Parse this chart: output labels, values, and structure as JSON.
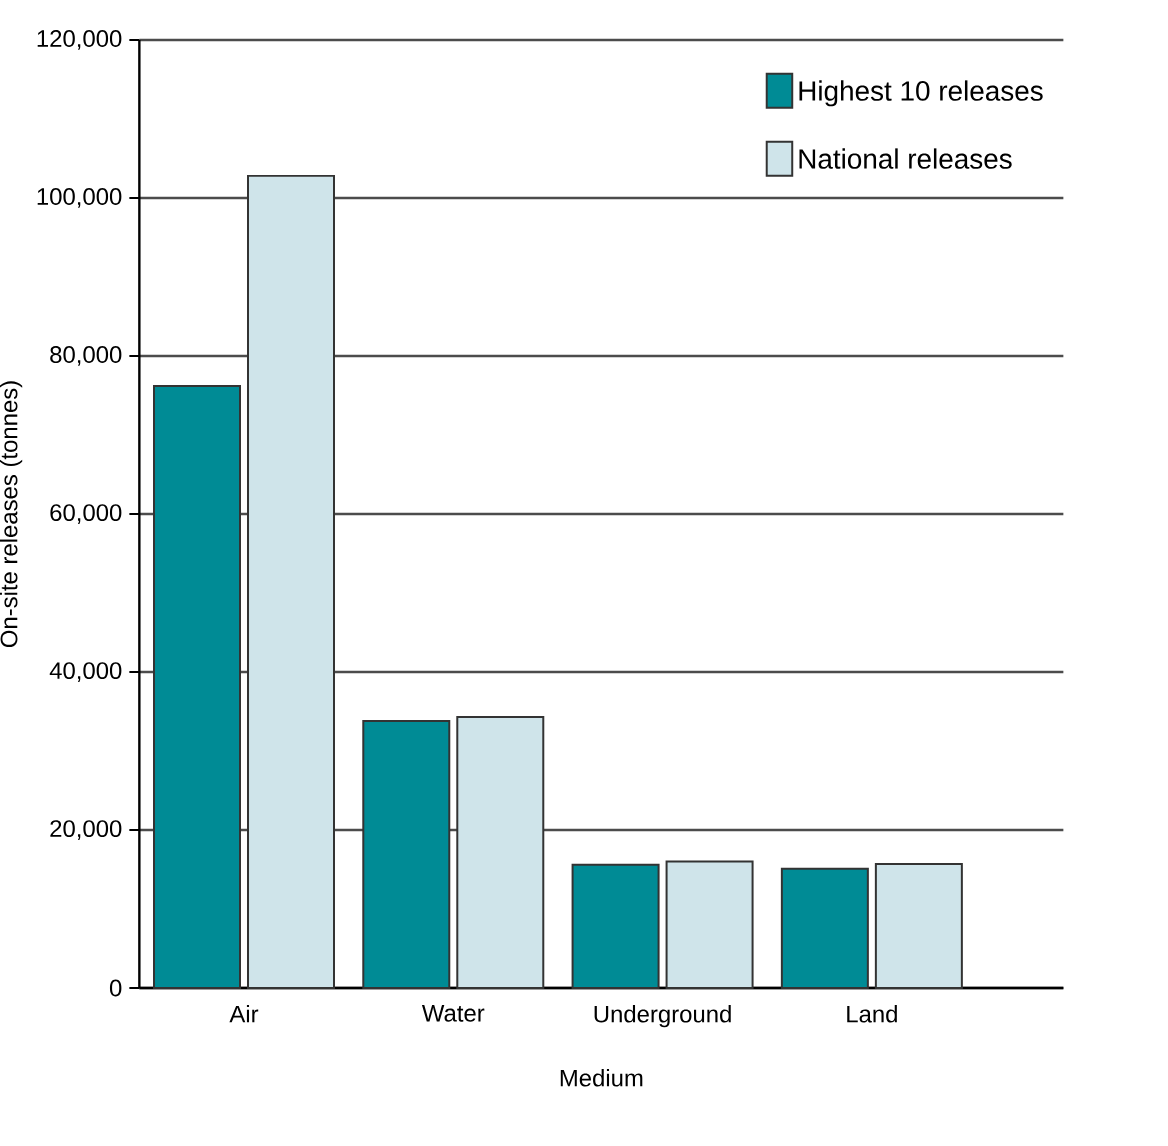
{
  "chart_data": {
    "type": "bar",
    "xlabel": "Medium",
    "ylabel": "On-site releases (tonnes)",
    "categories": [
      "Air",
      "Water",
      "Underground",
      "Land"
    ],
    "series": [
      {
        "name": "Highest 10 releases",
        "color": "#008b95",
        "values": [
          76200,
          33800,
          15600,
          15100
        ]
      },
      {
        "name": "National releases",
        "color": "#cfe4ea",
        "values": [
          102800,
          34300,
          16000,
          15700
        ]
      }
    ],
    "ylim": [
      0,
      120000
    ],
    "yticks": [
      {
        "value": 0,
        "label": "0"
      },
      {
        "value": 20000,
        "label": "20,000"
      },
      {
        "value": 40000,
        "label": "40,000"
      },
      {
        "value": 60000,
        "label": "60,000"
      },
      {
        "value": 80000,
        "label": "80,000"
      },
      {
        "value": 100000,
        "label": "100,000"
      },
      {
        "value": 120000,
        "label": "120,000"
      }
    ],
    "grid": "y",
    "legend": "top right"
  }
}
